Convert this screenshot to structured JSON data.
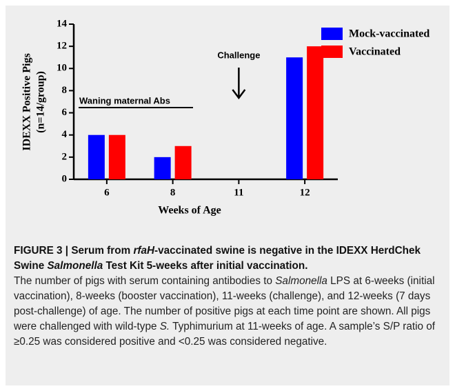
{
  "chart_data": {
    "type": "bar",
    "ylabel": [
      "IDEXX Positive Pigs",
      "(n=14/group)"
    ],
    "xlabel": "Weeks of Age",
    "categories": [
      "6",
      "8",
      "11",
      "12"
    ],
    "series": [
      {
        "name": "Mock-vaccinated",
        "color": "#0000ff",
        "values": [
          4,
          2,
          0,
          11
        ]
      },
      {
        "name": "Vaccinated",
        "color": "#ff0000",
        "values": [
          4,
          3,
          0,
          12
        ]
      }
    ],
    "ylim": [
      0,
      14
    ],
    "yticks": [
      0,
      2,
      4,
      6,
      8,
      10,
      12,
      14
    ],
    "annotations": [
      "Challenge",
      "Waning maternal Abs"
    ],
    "legend": "upper right"
  },
  "caption": {
    "title": [
      "FIGURE 3 | Serum from ",
      "rfaH",
      "-vaccinated swine is negative in the IDEXX HerdChek Swine ",
      "Salmonella",
      " Test Kit 5-weeks after initial vaccination."
    ],
    "body": [
      "The number of pigs with serum containing antibodies to ",
      "Salmonella",
      " LPS at 6-weeks (initial vaccination), 8-weeks (booster vaccination), 11-weeks (challenge), and 12-weeks (7 days post-challenge) of age. The number of positive pigs at each time point are shown. All pigs were challenged with wild-type ",
      "S.",
      " Typhimurium at 11-weeks of age. A sample’s S/P ratio of ≥0.25 was considered positive and <0.25 was considered negative."
    ]
  }
}
